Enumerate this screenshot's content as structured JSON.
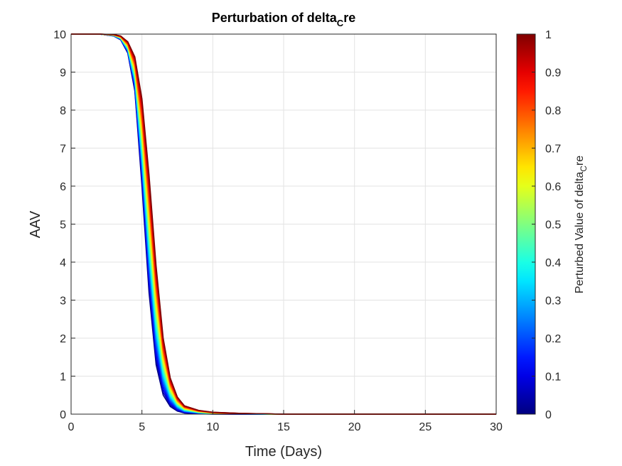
{
  "chart_data": {
    "type": "line",
    "title": {
      "main": "Perturbation of delta",
      "subscript": "C",
      "suffix": "re"
    },
    "xlabel": "Time (Days)",
    "ylabel": "AAV",
    "xlim": [
      0,
      30
    ],
    "ylim": [
      0,
      10
    ],
    "x_ticks": [
      "0",
      "5",
      "10",
      "15",
      "20",
      "25",
      "30"
    ],
    "y_ticks": [
      "0",
      "1",
      "2",
      "3",
      "4",
      "5",
      "6",
      "7",
      "8",
      "9",
      "10"
    ],
    "grid": true,
    "colormap": "jet",
    "colorbar": {
      "label_main": "Perturbed Value of delta",
      "label_subscript": "C",
      "label_suffix": "re",
      "range": [
        0,
        1
      ],
      "ticks": [
        "0",
        "0.1",
        "0.2",
        "0.3",
        "0.4",
        "0.5",
        "0.6",
        "0.7",
        "0.8",
        "0.9",
        "1"
      ]
    },
    "series_family": {
      "parameter_values": [
        0,
        0.05,
        0.1,
        0.15,
        0.2,
        0.25,
        0.3,
        0.35,
        0.4,
        0.45,
        0.5,
        0.55,
        0.6,
        0.65,
        0.7,
        0.75,
        0.8,
        0.85,
        0.9,
        0.95,
        1
      ],
      "x": [
        0,
        1,
        2,
        3,
        3.5,
        4,
        4.5,
        5,
        5.5,
        6,
        6.5,
        7,
        7.5,
        8,
        9,
        10,
        12,
        15,
        20,
        25,
        30
      ],
      "y_param_0": [
        10,
        10,
        10,
        9.95,
        9.85,
        9.5,
        8.5,
        6.0,
        3.2,
        1.3,
        0.5,
        0.2,
        0.08,
        0.03,
        0.01,
        0.0,
        0.0,
        0.0,
        0.0,
        0.0,
        0.0
      ],
      "y_param_1": [
        10,
        10,
        10,
        9.99,
        9.95,
        9.8,
        9.4,
        8.3,
        6.3,
        3.9,
        2.0,
        0.95,
        0.45,
        0.22,
        0.1,
        0.05,
        0.02,
        0.0,
        0.0,
        0.0,
        0.0
      ]
    }
  }
}
